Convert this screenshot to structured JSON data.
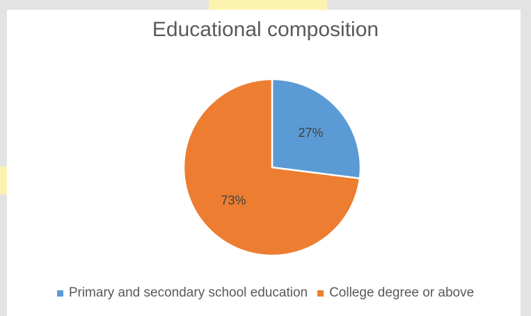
{
  "chart_data": {
    "type": "pie",
    "title": "Educational composition",
    "categories": [
      "Primary and secondary school education",
      "College degree or above"
    ],
    "values": [
      27,
      73
    ],
    "labels": [
      "27%",
      "73%"
    ],
    "colors": [
      "#5b9bd5",
      "#ed7d31"
    ],
    "legend_position": "bottom"
  }
}
